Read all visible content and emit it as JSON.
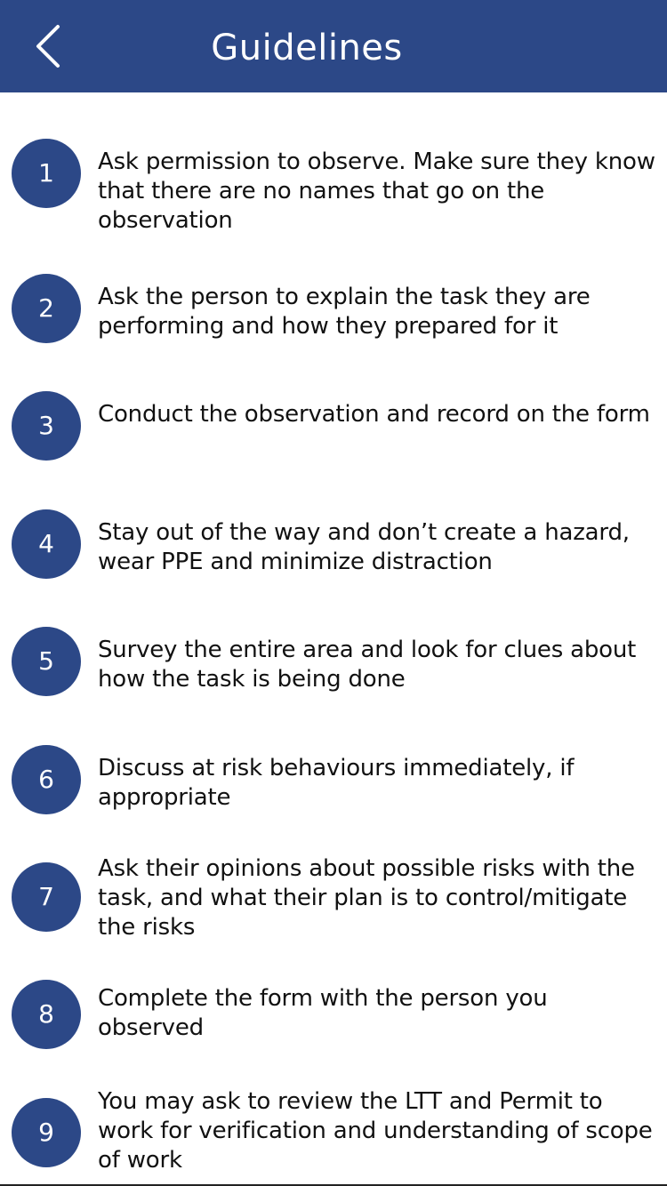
{
  "header": {
    "title": "Guidelines",
    "back_icon": "chevron-left-icon"
  },
  "colors": {
    "header_bg": "#2c4887",
    "badge_bg": "#2c4887",
    "text": "#111111"
  },
  "guidelines": [
    {
      "number": "1",
      "text": "Ask permission to observe. Make sure they know that there are no names that go on the observation"
    },
    {
      "number": "2",
      "text": "Ask the person to explain the task they are performing and how they prepared for it"
    },
    {
      "number": "3",
      "text": "Conduct the observation and record on the form"
    },
    {
      "number": "4",
      "text": "Stay out of the way and don’t create a hazard, wear PPE and minimize distraction"
    },
    {
      "number": "5",
      "text": "Survey the entire area and look for clues about how the task is being done"
    },
    {
      "number": "6",
      "text": "Discuss at risk behaviours immediately, if appropriate"
    },
    {
      "number": "7",
      "text": "Ask their opinions about possible risks with the task, and what their plan is to control/mitigate the risks"
    },
    {
      "number": "8",
      "text": "Complete the form with the person you observed"
    },
    {
      "number": "9",
      "text": "You may ask to review the LTT and Permit to work for verification and understanding of scope of work"
    }
  ]
}
